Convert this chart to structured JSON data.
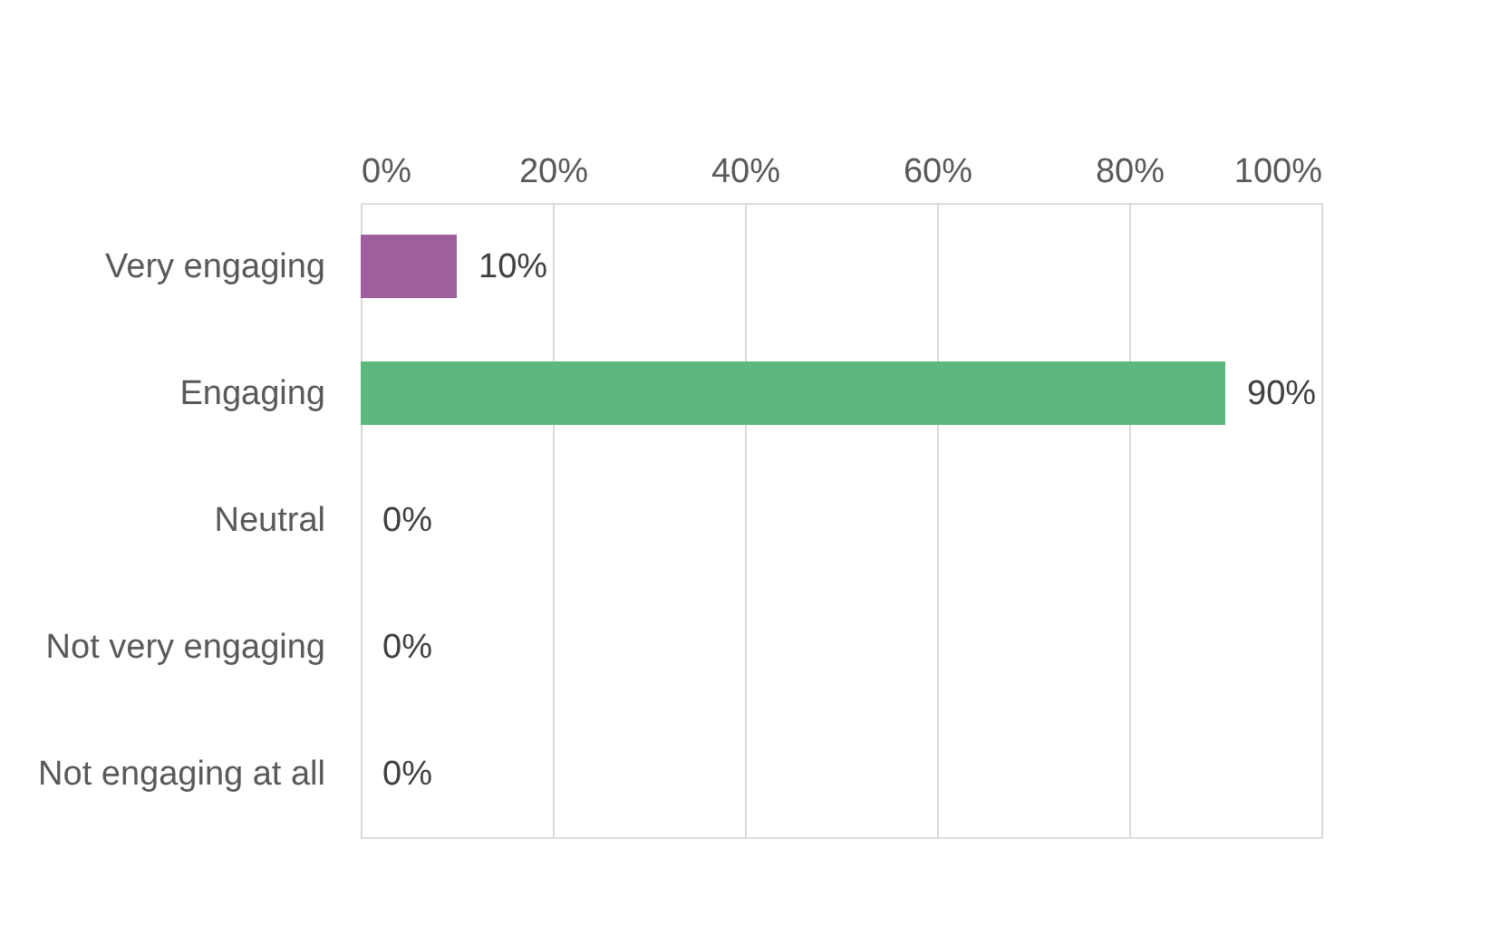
{
  "chart_data": {
    "type": "bar",
    "orientation": "horizontal",
    "categories": [
      "Very engaging",
      "Engaging",
      "Neutral",
      "Not very engaging",
      "Not engaging at all"
    ],
    "values": [
      10,
      90,
      0,
      0,
      0
    ],
    "colors": [
      "#9e5f9e",
      "#5cb87c",
      "#5cb87c",
      "#5cb87c",
      "#5cb87c"
    ],
    "value_labels": [
      "10%",
      "90%",
      "0%",
      "0%",
      "0%"
    ],
    "xlim": [
      0,
      100
    ],
    "xticks": [
      {
        "value": 0,
        "label": "0%"
      },
      {
        "value": 20,
        "label": "20%"
      },
      {
        "value": 40,
        "label": "40%"
      },
      {
        "value": 60,
        "label": "60%"
      },
      {
        "value": 80,
        "label": "80%"
      },
      {
        "value": 100,
        "label": "100%"
      }
    ],
    "grid": "x"
  }
}
